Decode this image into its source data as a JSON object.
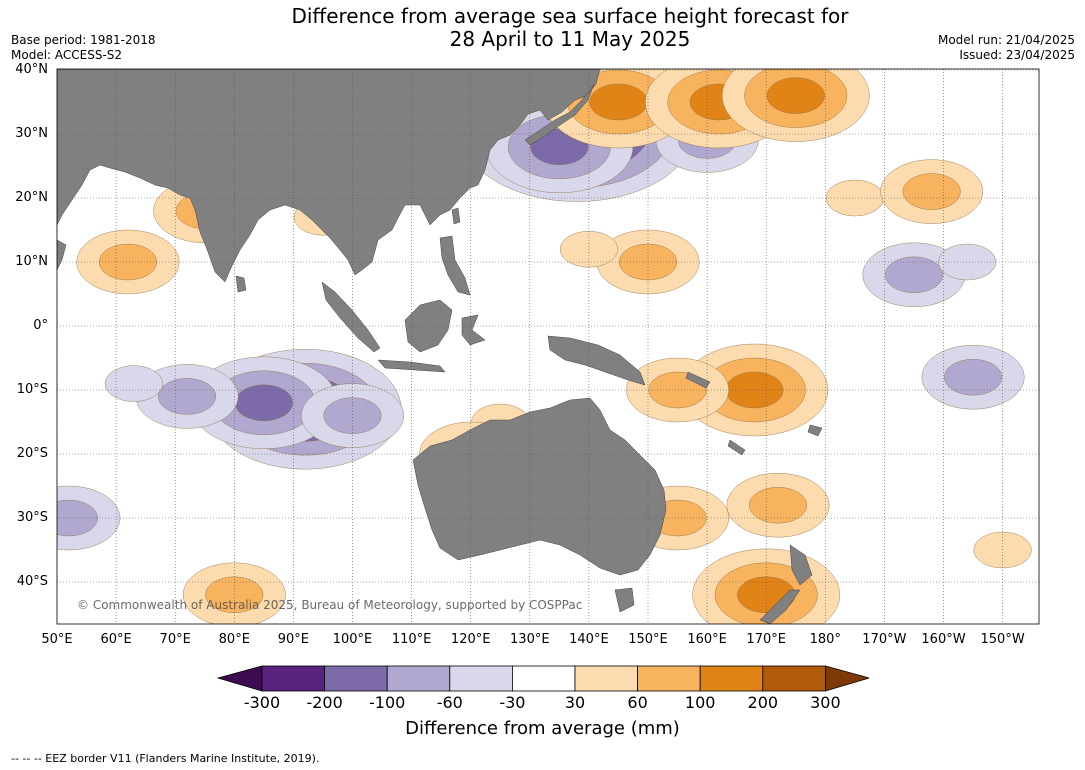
{
  "title_line1": "Difference from average sea surface height forecast for",
  "title_line2": "28 April to 11 May 2025",
  "base_period": "Base period: 1981-2018",
  "model": "Model: ACCESS-S2",
  "model_run": "Model run: 21/04/2025",
  "issued": "Issued: 23/04/2025",
  "copyright": "© Commonwealth of Australia 2025, Bureau of Meteorology, supported by COSPPac",
  "footer": "-- -- -- EEZ border V11 (Flanders Marine Institute, 2019).",
  "colors": {
    "land": "#808080",
    "ocean": "#ffffff",
    "grid": "#555555"
  },
  "longitude_labels": [
    "50°E",
    "60°E",
    "70°E",
    "80°E",
    "90°E",
    "100°E",
    "110°E",
    "120°E",
    "130°E",
    "140°E",
    "150°E",
    "160°E",
    "170°E",
    "180°",
    "170°W",
    "160°W",
    "150°W"
  ],
  "latitude_labels": [
    "40°N",
    "30°N",
    "20°N",
    "10°N",
    "0°",
    "10°S",
    "20°S",
    "30°S",
    "40°S"
  ],
  "colorbar": {
    "label": "Difference from average (mm)",
    "ticks": [
      "-300",
      "-200",
      "-100",
      "-60",
      "-30",
      "30",
      "60",
      "100",
      "200",
      "300"
    ],
    "bins": [
      {
        "color": "#3d0b52"
      },
      {
        "color": "#58237d"
      },
      {
        "color": "#7d6aa8"
      },
      {
        "color": "#b0a8cf"
      },
      {
        "color": "#d8d8ea"
      },
      {
        "color": "#ffffff"
      },
      {
        "color": "#fcdbae"
      },
      {
        "color": "#f7b35e"
      },
      {
        "color": "#e08418"
      },
      {
        "color": "#b05a0b"
      },
      {
        "color": "#7e3a06"
      }
    ]
  },
  "anomaly_blobs": [
    {
      "lon": 92,
      "lat": -13,
      "level": "-200"
    },
    {
      "lon": 85,
      "lat": -12,
      "level": "-100"
    },
    {
      "lon": 72,
      "lat": -11,
      "level": "-60"
    },
    {
      "lon": 100,
      "lat": -14,
      "level": "-60"
    },
    {
      "lon": 63,
      "lat": -9,
      "level": "-30"
    },
    {
      "lon": 138,
      "lat": 31,
      "level": "-300"
    },
    {
      "lon": 135,
      "lat": 28,
      "level": "-100"
    },
    {
      "lon": 160,
      "lat": 29,
      "level": "-60"
    },
    {
      "lon": 195,
      "lat": 8,
      "level": "-60"
    },
    {
      "lon": 204,
      "lat": 10,
      "level": "-30"
    },
    {
      "lon": 205,
      "lat": -8,
      "level": "-60"
    },
    {
      "lon": 52,
      "lat": -30,
      "level": "-60"
    },
    {
      "lon": 150,
      "lat": 10,
      "level": "100"
    },
    {
      "lon": 140,
      "lat": 12,
      "level": "60"
    },
    {
      "lon": 145,
      "lat": 35,
      "level": "200"
    },
    {
      "lon": 162,
      "lat": 35,
      "level": "200"
    },
    {
      "lon": 175,
      "lat": 36,
      "level": "200"
    },
    {
      "lon": 168,
      "lat": -10,
      "level": "200"
    },
    {
      "lon": 155,
      "lat": -10,
      "level": "100"
    },
    {
      "lon": 172,
      "lat": -28,
      "level": "100"
    },
    {
      "lon": 170,
      "lat": -42,
      "level": "200"
    },
    {
      "lon": 80,
      "lat": -42,
      "level": "100"
    },
    {
      "lon": 62,
      "lat": 10,
      "level": "100"
    },
    {
      "lon": 75,
      "lat": 18,
      "level": "100"
    },
    {
      "lon": 95,
      "lat": 17,
      "level": "60"
    },
    {
      "lon": 125,
      "lat": -15,
      "level": "60"
    },
    {
      "lon": 120,
      "lat": -20,
      "level": "100"
    },
    {
      "lon": 155,
      "lat": -30,
      "level": "100"
    },
    {
      "lon": 185,
      "lat": 20,
      "level": "60"
    },
    {
      "lon": 198,
      "lat": 21,
      "level": "100"
    },
    {
      "lon": 210,
      "lat": -35,
      "level": "60"
    }
  ]
}
